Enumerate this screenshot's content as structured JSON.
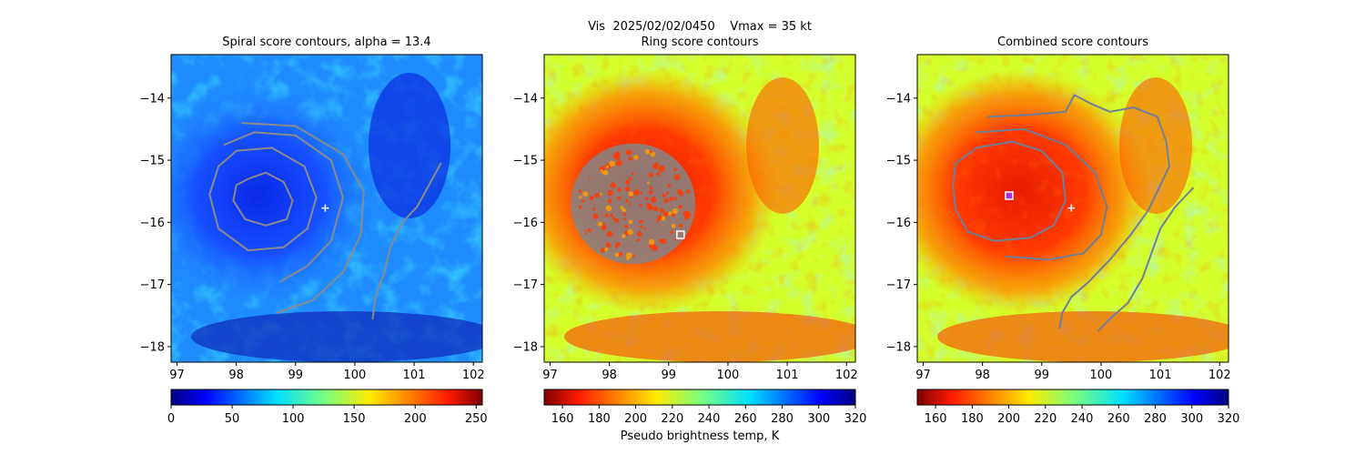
{
  "figure": {
    "suptitle": "Vis  2025/02/02/0450    Vmax = 35 kt",
    "colorbar_label": "Pseudo brightness temp, K"
  },
  "chart_data": [
    {
      "type": "heatmap",
      "title": "Spiral score contours, alpha = 13.4",
      "xlim": [
        96.9,
        102.15
      ],
      "ylim": [
        -18.25,
        -13.3
      ],
      "xticks": [
        97,
        98,
        99,
        100,
        101,
        102
      ],
      "yticks": [
        -14,
        -15,
        -16,
        -17,
        -18
      ],
      "colormap": "jet",
      "colorbar": {
        "range": [
          0,
          255
        ],
        "ticks": [
          0,
          50,
          100,
          150,
          200,
          250
        ]
      },
      "center_marker": {
        "symbol": "+",
        "lon": 99.5,
        "lat": -15.77
      },
      "contours": [
        [
          [
            98.2,
            -15.3
          ],
          [
            98.5,
            -15.2
          ],
          [
            98.8,
            -15.35
          ],
          [
            98.95,
            -15.65
          ],
          [
            98.85,
            -15.95
          ],
          [
            98.5,
            -16.05
          ],
          [
            98.15,
            -15.95
          ],
          [
            97.95,
            -15.65
          ],
          [
            98.0,
            -15.4
          ],
          [
            98.2,
            -15.3
          ]
        ],
        [
          [
            98.0,
            -14.85
          ],
          [
            98.6,
            -14.8
          ],
          [
            99.15,
            -15.1
          ],
          [
            99.35,
            -15.6
          ],
          [
            99.2,
            -16.1
          ],
          [
            98.8,
            -16.4
          ],
          [
            98.2,
            -16.45
          ],
          [
            97.7,
            -16.1
          ],
          [
            97.55,
            -15.55
          ],
          [
            97.7,
            -15.1
          ],
          [
            98.0,
            -14.85
          ]
        ],
        [
          [
            97.8,
            -14.75
          ],
          [
            98.3,
            -14.55
          ],
          [
            99.0,
            -14.6
          ],
          [
            99.6,
            -15.0
          ],
          [
            99.8,
            -15.6
          ],
          [
            99.6,
            -16.3
          ],
          [
            99.2,
            -16.7
          ],
          [
            98.75,
            -16.95
          ]
        ],
        [
          [
            98.1,
            -14.4
          ],
          [
            99.0,
            -14.45
          ],
          [
            99.8,
            -14.9
          ],
          [
            100.15,
            -15.5
          ],
          [
            100.1,
            -16.2
          ],
          [
            99.8,
            -16.8
          ],
          [
            99.3,
            -17.25
          ],
          [
            98.7,
            -17.45
          ]
        ],
        [
          [
            101.45,
            -15.05
          ],
          [
            101.25,
            -15.4
          ],
          [
            101.05,
            -15.75
          ],
          [
            100.8,
            -16.0
          ],
          [
            100.6,
            -16.4
          ],
          [
            100.5,
            -16.8
          ],
          [
            100.35,
            -17.2
          ],
          [
            100.3,
            -17.55
          ]
        ]
      ]
    },
    {
      "type": "heatmap",
      "title": "Ring score contours",
      "xlim": [
        96.9,
        102.15
      ],
      "ylim": [
        -18.25,
        -13.3
      ],
      "xticks": [
        97,
        98,
        99,
        100,
        101,
        102
      ],
      "yticks": [
        -14,
        -15,
        -16,
        -17,
        -18
      ],
      "colormap": "jet_r",
      "colorbar": {
        "range": [
          150,
          320
        ],
        "ticks": [
          160,
          180,
          200,
          220,
          240,
          260,
          280,
          300,
          320
        ]
      },
      "center_marker": {
        "symbol": "square",
        "lon": 99.2,
        "lat": -16.2
      },
      "ring_score_region": {
        "center_lon": 98.4,
        "center_lat": -15.7,
        "lon_radius": 1.05,
        "lat_radius": 0.97
      }
    },
    {
      "type": "heatmap",
      "title": "Combined score contours",
      "xlim": [
        96.9,
        102.15
      ],
      "ylim": [
        -18.25,
        -13.3
      ],
      "xticks": [
        97,
        98,
        99,
        100,
        101,
        102
      ],
      "yticks": [
        -14,
        -15,
        -16,
        -17,
        -18
      ],
      "colormap": "jet_r",
      "colorbar": {
        "range": [
          150,
          320
        ],
        "ticks": [
          160,
          180,
          200,
          220,
          240,
          260,
          280,
          300,
          320
        ]
      },
      "center_marker": {
        "symbol": "+",
        "lon": 99.5,
        "lat": -15.77
      },
      "combined_marker": {
        "symbol": "square",
        "lon": 98.45,
        "lat": -15.57
      },
      "contours": [
        [
          [
            97.9,
            -14.55
          ],
          [
            98.7,
            -14.5
          ],
          [
            99.4,
            -14.75
          ],
          [
            99.9,
            -15.2
          ],
          [
            100.1,
            -15.75
          ],
          [
            100.0,
            -16.2
          ],
          [
            99.7,
            -16.5
          ],
          [
            99.1,
            -16.6
          ],
          [
            98.4,
            -16.55
          ]
        ],
        [
          [
            97.55,
            -15.05
          ],
          [
            97.9,
            -14.8
          ],
          [
            98.5,
            -14.7
          ],
          [
            99.0,
            -14.85
          ],
          [
            99.35,
            -15.2
          ],
          [
            99.4,
            -15.65
          ],
          [
            99.2,
            -16.05
          ],
          [
            98.8,
            -16.25
          ],
          [
            98.2,
            -16.3
          ],
          [
            97.75,
            -16.15
          ],
          [
            97.55,
            -15.8
          ],
          [
            97.5,
            -15.4
          ],
          [
            97.55,
            -15.05
          ]
        ],
        [
          [
            98.1,
            -14.3
          ],
          [
            98.8,
            -14.27
          ],
          [
            99.4,
            -14.22
          ],
          [
            99.55,
            -13.95
          ],
          [
            99.85,
            -14.1
          ],
          [
            100.15,
            -14.22
          ],
          [
            100.55,
            -14.15
          ],
          [
            100.95,
            -14.3
          ],
          [
            101.1,
            -14.7
          ],
          [
            101.15,
            -15.1
          ],
          [
            101.0,
            -15.4
          ],
          [
            100.8,
            -15.8
          ],
          [
            100.5,
            -16.2
          ],
          [
            100.15,
            -16.6
          ],
          [
            99.8,
            -16.95
          ],
          [
            99.5,
            -17.2
          ],
          [
            99.35,
            -17.45
          ],
          [
            99.3,
            -17.7
          ]
        ],
        [
          [
            101.55,
            -15.45
          ],
          [
            101.25,
            -15.75
          ],
          [
            101.0,
            -16.1
          ],
          [
            100.85,
            -16.5
          ],
          [
            100.7,
            -16.9
          ],
          [
            100.45,
            -17.3
          ],
          [
            100.15,
            -17.55
          ],
          [
            99.95,
            -17.75
          ]
        ]
      ]
    }
  ]
}
